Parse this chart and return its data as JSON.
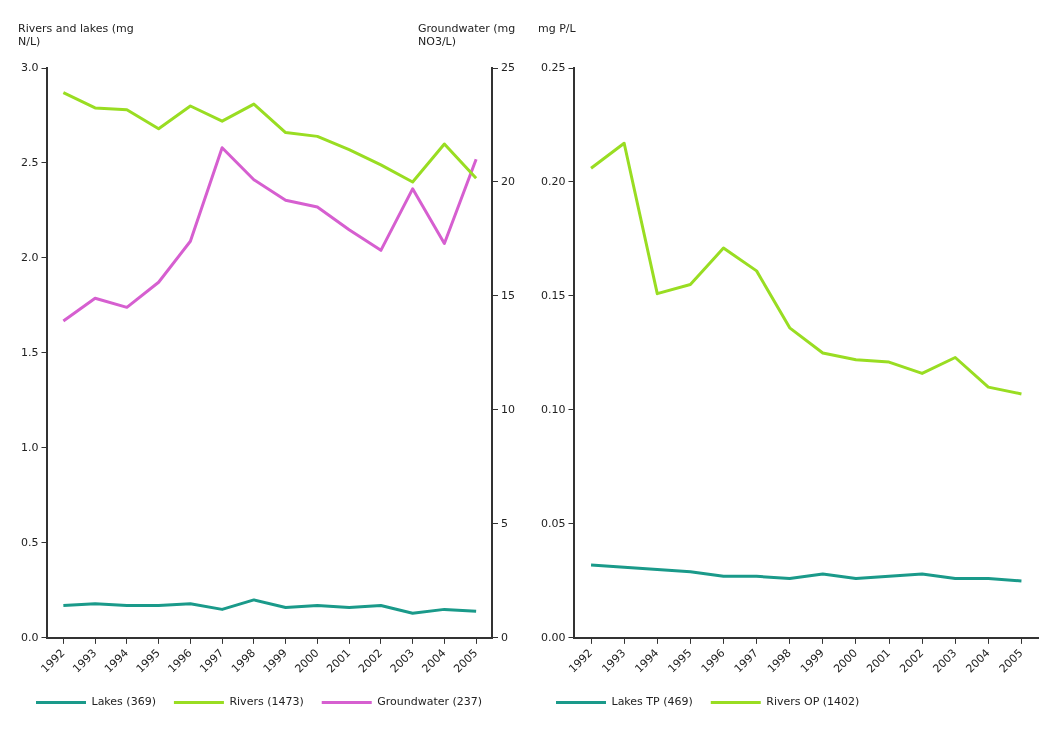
{
  "chart_data": [
    {
      "type": "line",
      "ylabel": "Rivers and lakes (mg N/L)",
      "y2label": "Groundwater (mg NO3/L)",
      "categories": [
        "1992",
        "1993",
        "1994",
        "1995",
        "1996",
        "1997",
        "1998",
        "1999",
        "2000",
        "2001",
        "2002",
        "2003",
        "2004",
        "2005"
      ],
      "series": [
        {
          "name": "Lakes (369)",
          "color": "#1a9a8a",
          "values": [
            0.17,
            0.18,
            0.17,
            0.17,
            0.18,
            0.15,
            0.2,
            0.16,
            0.17,
            0.16,
            0.17,
            0.13,
            0.15,
            0.14
          ]
        },
        {
          "name": "Rivers (1473)",
          "color": "#99dd22",
          "values": [
            2.87,
            2.79,
            2.78,
            2.68,
            2.8,
            2.72,
            2.81,
            2.66,
            2.64,
            2.57,
            2.49,
            2.4,
            2.6,
            2.42
          ]
        },
        {
          "name": "Groundwater (237)",
          "color": "#d65fd0",
          "axis": "y2",
          "values": [
            13.9,
            14.9,
            14.5,
            15.6,
            17.4,
            21.5,
            20.1,
            19.2,
            18.9,
            17.9,
            17.0,
            19.7,
            17.3,
            21.0
          ]
        }
      ],
      "ylim": [
        0,
        3
      ],
      "yticks": [
        {
          "value": 0,
          "label": "0.0"
        },
        {
          "value": 0.5,
          "label": "0.5"
        },
        {
          "value": 1,
          "label": "1.0"
        },
        {
          "value": 1.5,
          "label": "1.5"
        },
        {
          "value": 2,
          "label": "2.0"
        },
        {
          "value": 2.5,
          "label": "2.5"
        },
        {
          "value": 3,
          "label": "3.0"
        }
      ],
      "y2lim": [
        0,
        25
      ],
      "y2ticks": [
        0,
        5,
        10,
        15,
        20,
        25
      ],
      "legend": "bottom",
      "marker": "none"
    },
    {
      "type": "line",
      "ylabel": "mg P/L",
      "categories": [
        "1992",
        "1993",
        "1994",
        "1995",
        "1996",
        "1997",
        "1998",
        "1999",
        "2000",
        "2001",
        "2002",
        "2003",
        "2004",
        "2005"
      ],
      "series": [
        {
          "name": "Lakes TP (469)",
          "color": "#1a9a8a",
          "values": [
            0.032,
            0.031,
            0.03,
            0.029,
            0.027,
            0.027,
            0.026,
            0.028,
            0.026,
            0.027,
            0.028,
            0.026,
            0.026,
            0.025
          ]
        },
        {
          "name": "Rivers OP (1402)",
          "color": "#99dd22",
          "values": [
            0.206,
            0.217,
            0.151,
            0.155,
            0.171,
            0.161,
            0.136,
            0.125,
            0.122,
            0.121,
            0.116,
            0.123,
            0.11,
            0.107
          ]
        }
      ],
      "ylim": [
        0,
        0.25
      ],
      "yticks": [
        {
          "value": 0,
          "label": "0.00"
        },
        0.05,
        {
          "value": 0.1,
          "label": "0.10"
        },
        0.15,
        {
          "value": 0.2,
          "label": "0.20"
        },
        0.25
      ],
      "legend": "bottom",
      "marker": "none"
    }
  ]
}
